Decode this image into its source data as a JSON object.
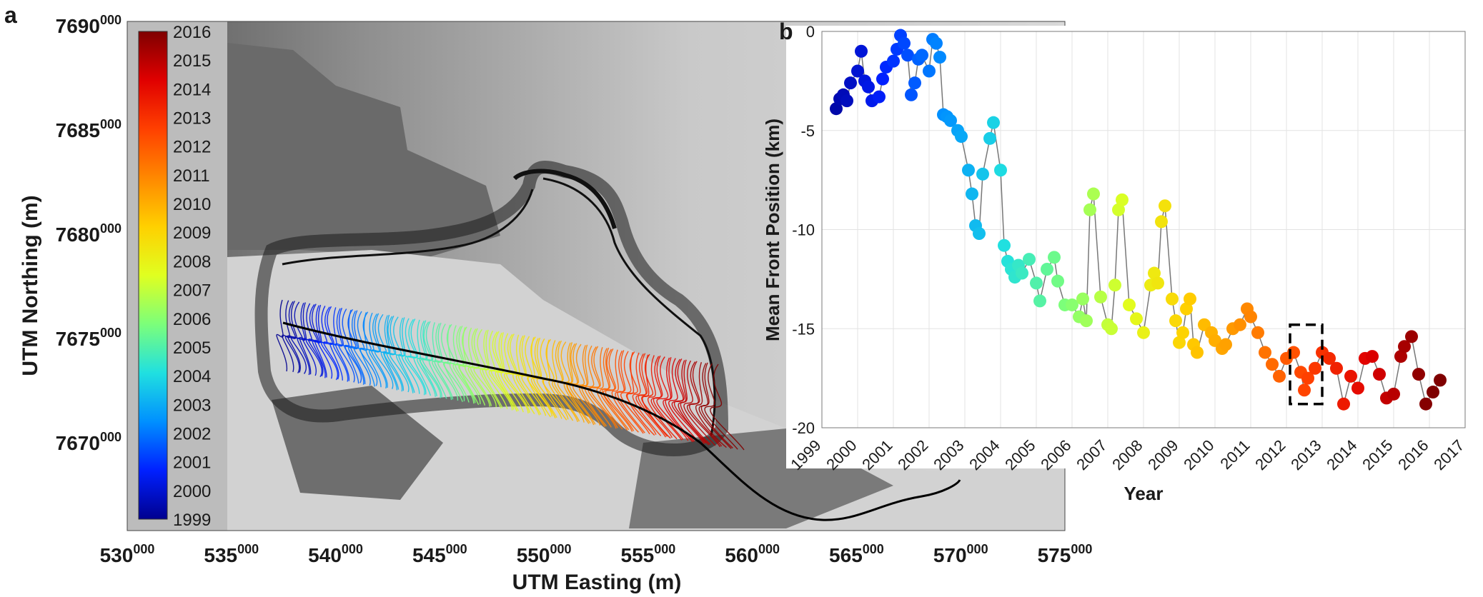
{
  "panel_a": {
    "label": "a",
    "xlabel": "UTM Easting (m)",
    "ylabel": "UTM Northing (m)",
    "x_ticks": [
      {
        "base": "530",
        "exp": "000",
        "value": 530000
      },
      {
        "base": "535",
        "exp": "000",
        "value": 535000
      },
      {
        "base": "540",
        "exp": "000",
        "value": 540000
      },
      {
        "base": "545",
        "exp": "000",
        "value": 545000
      },
      {
        "base": "550",
        "exp": "000",
        "value": 550000
      },
      {
        "base": "555",
        "exp": "000",
        "value": 555000
      },
      {
        "base": "560",
        "exp": "000",
        "value": 560000
      },
      {
        "base": "565",
        "exp": "000",
        "value": 565000
      },
      {
        "base": "570",
        "exp": "000",
        "value": 570000
      },
      {
        "base": "575",
        "exp": "000",
        "value": 575000
      }
    ],
    "y_ticks": [
      {
        "base": "7690",
        "exp": "000",
        "value": 7690000
      },
      {
        "base": "7685",
        "exp": "000",
        "value": 7685000
      },
      {
        "base": "7680",
        "exp": "000",
        "value": 7680000
      },
      {
        "base": "7675",
        "exp": "000",
        "value": 7675000
      },
      {
        "base": "7670",
        "exp": "000",
        "value": 7670000
      }
    ],
    "colorbar_labels": [
      "2016",
      "2015",
      "2014",
      "2013",
      "2012",
      "2011",
      "2010",
      "2009",
      "2008",
      "2007",
      "2006",
      "2005",
      "2004",
      "2003",
      "2002",
      "2001",
      "2000",
      "1999"
    ],
    "colorbar_colors": [
      "#7f0000",
      "#e00000",
      "#ff4000",
      "#ff8800",
      "#ffd000",
      "#e0ff20",
      "#7cff7a",
      "#20e0e0",
      "#0090ff",
      "#0020ff",
      "#00008f"
    ]
  },
  "chart_data": {
    "type": "scatter",
    "label": "b",
    "title": "",
    "xlabel": "Year",
    "ylabel": "Mean Front Position (km)",
    "xlim": [
      1999,
      2017
    ],
    "ylim": [
      -20,
      0
    ],
    "x_tick_labels": [
      "1999",
      "2000",
      "2001",
      "2002",
      "2003",
      "2004",
      "2005",
      "2006",
      "2007",
      "2008",
      "2009",
      "2010",
      "2011",
      "2012",
      "2013",
      "2014",
      "2015",
      "2016",
      "2017"
    ],
    "y_tick_labels": [
      "0",
      "-5",
      "-10",
      "-15",
      "-20"
    ],
    "grid": true,
    "highlight_box": {
      "x": [
        2012.1,
        2013.0
      ],
      "y": [
        -18.8,
        -14.8
      ]
    },
    "series": [
      {
        "name": "mean front position",
        "x": [
          1999.4,
          1999.5,
          1999.6,
          1999.7,
          1999.8,
          2000.0,
          2000.1,
          2000.2,
          2000.3,
          2000.4,
          2000.6,
          2000.7,
          2000.8,
          2001.0,
          2001.1,
          2001.2,
          2001.3,
          2001.4,
          2001.5,
          2001.6,
          2001.7,
          2001.8,
          2002.0,
          2002.1,
          2002.2,
          2002.3,
          2002.4,
          2002.5,
          2002.6,
          2002.8,
          2002.9,
          2003.1,
          2003.2,
          2003.3,
          2003.4,
          2003.5,
          2003.7,
          2003.8,
          2004.0,
          2004.1,
          2004.2,
          2004.3,
          2004.4,
          2004.5,
          2004.6,
          2004.8,
          2005.0,
          2005.1,
          2005.3,
          2005.5,
          2005.6,
          2005.8,
          2006.0,
          2006.2,
          2006.3,
          2006.4,
          2006.5,
          2006.6,
          2006.8,
          2007.0,
          2007.1,
          2007.2,
          2007.3,
          2007.4,
          2007.6,
          2007.8,
          2008.0,
          2008.2,
          2008.3,
          2008.4,
          2008.5,
          2008.6,
          2008.8,
          2008.9,
          2009.0,
          2009.1,
          2009.2,
          2009.3,
          2009.4,
          2009.5,
          2009.7,
          2009.9,
          2010.0,
          2010.2,
          2010.3,
          2010.5,
          2010.7,
          2010.9,
          2011.0,
          2011.2,
          2011.4,
          2011.6,
          2011.8,
          2012.0,
          2012.2,
          2012.4,
          2012.5,
          2012.6,
          2012.8,
          2013.0,
          2013.2,
          2013.4,
          2013.6,
          2013.8,
          2014.0,
          2014.2,
          2014.4,
          2014.6,
          2014.8,
          2015.0,
          2015.2,
          2015.3,
          2015.5,
          2015.7,
          2015.9,
          2016.1,
          2016.3
        ],
        "y": [
          -3.9,
          -3.4,
          -3.2,
          -3.5,
          -2.6,
          -2.0,
          -1.0,
          -2.5,
          -2.8,
          -3.5,
          -3.3,
          -2.4,
          -1.8,
          -1.5,
          -0.9,
          -0.2,
          -0.6,
          -1.2,
          -3.2,
          -2.6,
          -1.4,
          -1.2,
          -2.0,
          -0.4,
          -0.6,
          -1.3,
          -4.2,
          -4.3,
          -4.5,
          -5.0,
          -5.3,
          -7.0,
          -8.2,
          -9.8,
          -10.2,
          -7.2,
          -5.4,
          -4.6,
          -7.0,
          -10.8,
          -11.6,
          -12.0,
          -12.4,
          -11.8,
          -12.2,
          -11.5,
          -12.7,
          -13.6,
          -12.0,
          -11.4,
          -12.6,
          -13.8,
          -13.8,
          -14.4,
          -13.5,
          -14.6,
          -9.0,
          -8.2,
          -13.4,
          -14.8,
          -15.0,
          -12.8,
          -9.0,
          -8.5,
          -13.8,
          -14.5,
          -15.2,
          -12.8,
          -12.2,
          -12.7,
          -9.6,
          -8.8,
          -13.5,
          -14.6,
          -15.7,
          -15.2,
          -14.0,
          -13.5,
          -15.8,
          -16.2,
          -14.8,
          -15.2,
          -15.6,
          -16.0,
          -15.8,
          -15.0,
          -14.8,
          -14.0,
          -14.4,
          -15.2,
          -16.2,
          -16.8,
          -17.4,
          -16.5,
          -16.2,
          -17.2,
          -18.1,
          -17.5,
          -17.0,
          -16.2,
          -16.5,
          -17.0,
          -18.8,
          -17.4,
          -18.0,
          -16.5,
          -16.4,
          -17.3,
          -18.5,
          -18.3,
          -16.4,
          -15.9,
          -15.4,
          -17.3,
          -18.8,
          -18.2,
          -17.6
        ]
      }
    ]
  }
}
